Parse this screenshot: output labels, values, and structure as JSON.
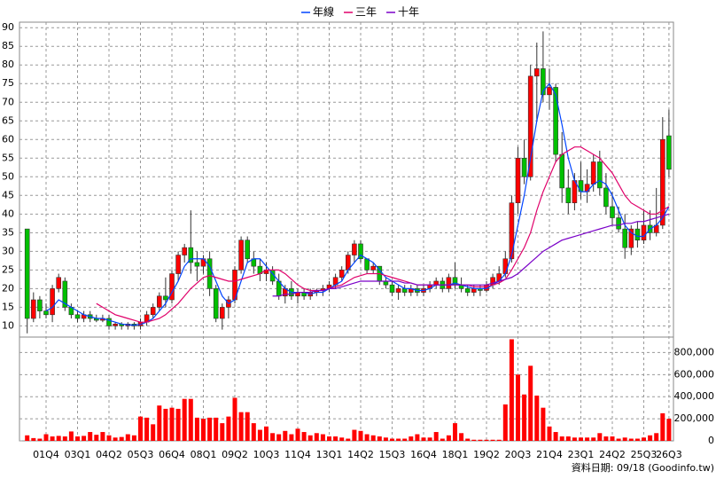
{
  "chart_data": {
    "type": "candlestick",
    "grid": true,
    "categories": [
      null,
      null,
      null,
      "01Q4",
      null,
      null,
      null,
      null,
      "03Q1",
      null,
      null,
      null,
      null,
      "04Q2",
      null,
      null,
      null,
      null,
      "05Q3",
      null,
      null,
      null,
      null,
      "06Q4",
      null,
      null,
      null,
      null,
      "08Q1",
      null,
      null,
      null,
      null,
      "09Q2",
      null,
      null,
      null,
      null,
      "10Q3",
      null,
      null,
      null,
      null,
      "11Q4",
      null,
      null,
      null,
      null,
      "13Q1",
      null,
      null,
      null,
      null,
      "14Q2",
      null,
      null,
      null,
      null,
      "15Q3",
      null,
      null,
      null,
      null,
      "16Q4",
      null,
      null,
      null,
      null,
      "18Q1",
      null,
      null,
      null,
      null,
      "19Q2",
      null,
      null,
      null,
      null,
      "20Q3",
      null,
      null,
      null,
      null,
      "21Q4",
      null,
      null,
      null,
      null,
      "23Q1",
      null,
      null,
      null,
      null,
      "24Q2",
      null,
      null,
      null,
      null,
      "25Q3",
      null,
      null,
      null,
      "26Q3"
    ],
    "ylim": [
      7,
      91
    ],
    "yticks": [
      10,
      15,
      20,
      25,
      30,
      35,
      40,
      45,
      50,
      55,
      60,
      65,
      70,
      75,
      80,
      85,
      90
    ],
    "up_color": "#ff0000",
    "down_color": "#00c000",
    "ohlc": [
      [
        36,
        36,
        8,
        12
      ],
      [
        12,
        19,
        11,
        17
      ],
      [
        17,
        18,
        12,
        14
      ],
      [
        14,
        16,
        12,
        13
      ],
      [
        13,
        21,
        11,
        20
      ],
      [
        20,
        24,
        19,
        23
      ],
      [
        22,
        23,
        14,
        15
      ],
      [
        15,
        16,
        12,
        13
      ],
      [
        13,
        14,
        11,
        12
      ],
      [
        12,
        14,
        11,
        13
      ],
      [
        13,
        14,
        11,
        12
      ],
      [
        12,
        13,
        11,
        11.5
      ],
      [
        11.5,
        13,
        11,
        12
      ],
      [
        12,
        13,
        9,
        10
      ],
      [
        10,
        11,
        9,
        10.5
      ],
      [
        10.5,
        11,
        9,
        10
      ],
      [
        10,
        11,
        9,
        10.5
      ],
      [
        10.5,
        11,
        9,
        10
      ],
      [
        10,
        12,
        9,
        11
      ],
      [
        11,
        14,
        10,
        13
      ],
      [
        13,
        16,
        12,
        15
      ],
      [
        15,
        19,
        14,
        18
      ],
      [
        18,
        23,
        15,
        17
      ],
      [
        17,
        25,
        16,
        24
      ],
      [
        24,
        30,
        22,
        29
      ],
      [
        29,
        32,
        27,
        31
      ],
      [
        31,
        41,
        24,
        27
      ],
      [
        27,
        30,
        22,
        26
      ],
      [
        26,
        29,
        24,
        28
      ],
      [
        28,
        30,
        18,
        20
      ],
      [
        20,
        21,
        11,
        12
      ],
      [
        12,
        16,
        9,
        15
      ],
      [
        15,
        18,
        12,
        17
      ],
      [
        17,
        26,
        16,
        25
      ],
      [
        25,
        34,
        24,
        33
      ],
      [
        33,
        34,
        27,
        28
      ],
      [
        28,
        30,
        24,
        26
      ],
      [
        26,
        28,
        22,
        24
      ],
      [
        24,
        27,
        22,
        25
      ],
      [
        25,
        26,
        21,
        22
      ],
      [
        22,
        24,
        17,
        18
      ],
      [
        18,
        21,
        16,
        20
      ],
      [
        20,
        22,
        17,
        18
      ],
      [
        18,
        20,
        16,
        19
      ],
      [
        19,
        20,
        17,
        18
      ],
      [
        18,
        20,
        17,
        19
      ],
      [
        19,
        20,
        18,
        19.5
      ],
      [
        19.5,
        21,
        18,
        20
      ],
      [
        20,
        22,
        19,
        21
      ],
      [
        21,
        24,
        20,
        23
      ],
      [
        23,
        26,
        22,
        25
      ],
      [
        25,
        30,
        24,
        29
      ],
      [
        29,
        33,
        27,
        32
      ],
      [
        32,
        33,
        27,
        28
      ],
      [
        28,
        28,
        24,
        25
      ],
      [
        25,
        27,
        24,
        26
      ],
      [
        26,
        26,
        21,
        22
      ],
      [
        22,
        23,
        20,
        21
      ],
      [
        21,
        22,
        18,
        19
      ],
      [
        19,
        21,
        17,
        20
      ],
      [
        20,
        21,
        18,
        19
      ],
      [
        19,
        21,
        18,
        20
      ],
      [
        20,
        21,
        18,
        19
      ],
      [
        19,
        21,
        18,
        20
      ],
      [
        20,
        22,
        19,
        21
      ],
      [
        21,
        23,
        20,
        22
      ],
      [
        22,
        23,
        19,
        20
      ],
      [
        20,
        24,
        19,
        23
      ],
      [
        23,
        27,
        20,
        21
      ],
      [
        21,
        23,
        19,
        20
      ],
      [
        20,
        21,
        18,
        19
      ],
      [
        19,
        21,
        18,
        20
      ],
      [
        20,
        21,
        18,
        19.5
      ],
      [
        19.5,
        22,
        19,
        21
      ],
      [
        21,
        24,
        20,
        23
      ],
      [
        22,
        26,
        21,
        24
      ],
      [
        24,
        30,
        23,
        28
      ],
      [
        28,
        45,
        27,
        43
      ],
      [
        43,
        58,
        40,
        55
      ],
      [
        55,
        60,
        48,
        50
      ],
      [
        50,
        80,
        49,
        77
      ],
      [
        77,
        86,
        65,
        79
      ],
      [
        79,
        89,
        70,
        72
      ],
      [
        72,
        79,
        68,
        74
      ],
      [
        74,
        75,
        54,
        56
      ],
      [
        56,
        62,
        43,
        47
      ],
      [
        47,
        52,
        40,
        43
      ],
      [
        43,
        51,
        41,
        49
      ],
      [
        49,
        54,
        44,
        46
      ],
      [
        46,
        52,
        43,
        48
      ],
      [
        48,
        56,
        46,
        54
      ],
      [
        54,
        57,
        45,
        47
      ],
      [
        47,
        51,
        40,
        42
      ],
      [
        42,
        46,
        37,
        39
      ],
      [
        39,
        42,
        35,
        36
      ],
      [
        36,
        40,
        28,
        31
      ],
      [
        31,
        37,
        29,
        36
      ],
      [
        36,
        38,
        31,
        33
      ],
      [
        33,
        41,
        32,
        37
      ],
      [
        37,
        41,
        33,
        35
      ],
      [
        35,
        47,
        34,
        37
      ],
      [
        37,
        66,
        36,
        60
      ],
      [
        61,
        68,
        50,
        52
      ]
    ],
    "series": [
      {
        "name": "年線",
        "color": "#0044ff",
        "values": [
          null,
          null,
          null,
          14,
          15,
          17,
          16,
          15,
          14,
          13,
          12.5,
          12,
          12,
          11.5,
          11,
          10.5,
          10.3,
          10.2,
          10.4,
          11,
          12,
          14,
          16,
          19,
          22,
          26,
          28,
          28,
          28,
          26,
          22,
          18,
          16,
          17,
          22,
          27,
          28,
          28,
          26,
          24,
          22,
          20,
          19,
          19,
          19,
          18.5,
          19,
          19,
          20,
          21,
          22,
          25,
          27,
          29,
          28,
          27,
          25,
          23,
          22,
          21,
          20,
          20,
          19.5,
          19.5,
          20,
          21,
          21,
          21,
          21.5,
          21,
          20.5,
          20,
          20,
          20,
          21,
          22,
          24,
          29,
          37,
          45,
          55,
          65,
          73,
          75,
          72,
          64,
          55,
          49,
          46,
          46,
          48,
          49,
          48,
          45,
          41,
          37,
          35,
          34,
          34,
          36,
          37,
          39,
          42
        ]
      },
      {
        "name": "三年",
        "color": "#e0006a",
        "values": [
          null,
          null,
          null,
          null,
          null,
          null,
          null,
          null,
          null,
          null,
          null,
          16,
          15,
          14,
          13,
          12.5,
          12,
          11.5,
          11,
          11,
          11.5,
          12,
          13,
          14.5,
          16,
          18,
          20,
          21.5,
          23,
          23.5,
          23,
          22.5,
          22,
          22,
          22.5,
          23,
          23.5,
          24,
          25,
          25,
          25,
          24,
          22.5,
          21,
          20,
          19.5,
          19.5,
          19.5,
          20,
          20.5,
          21,
          22,
          23,
          23.5,
          24,
          24,
          24,
          23.5,
          23,
          22.5,
          22,
          21.5,
          21,
          21,
          21,
          21,
          21,
          21,
          21,
          21,
          21,
          20.5,
          20.5,
          20.5,
          21,
          21.5,
          22.5,
          25,
          28,
          31,
          35,
          41,
          46,
          50,
          54,
          56,
          57,
          58,
          58,
          57,
          56,
          55,
          53,
          51,
          48,
          45,
          43,
          42,
          41,
          40,
          40,
          41,
          42
        ]
      },
      {
        "name": "十年",
        "color": "#7a00c8",
        "values": [
          null,
          null,
          null,
          null,
          null,
          null,
          null,
          null,
          null,
          null,
          null,
          null,
          null,
          null,
          null,
          null,
          null,
          null,
          null,
          null,
          null,
          null,
          null,
          null,
          null,
          null,
          null,
          null,
          null,
          null,
          null,
          null,
          null,
          null,
          null,
          null,
          null,
          null,
          null,
          18,
          18,
          18.5,
          18.5,
          19,
          19,
          19,
          19.5,
          19.5,
          20,
          20,
          20.5,
          21,
          21.5,
          22,
          22,
          22,
          22,
          22,
          22,
          22,
          21.5,
          21.5,
          21,
          21,
          21,
          21,
          21,
          21,
          21,
          21,
          21,
          21,
          21,
          21,
          21.5,
          22,
          22.5,
          23,
          24,
          25.5,
          27,
          28.5,
          30,
          31,
          32,
          33,
          33.5,
          34,
          34.5,
          35,
          35.5,
          36,
          36.5,
          37,
          37,
          37.5,
          37.5,
          38,
          38,
          38.5,
          39,
          39.5,
          40
        ]
      }
    ],
    "volume": {
      "color": "#ff0000",
      "ylim": [
        0,
        940000
      ],
      "yticks": [
        0,
        {
          "value": 200000,
          "label": "200,000"
        },
        {
          "value": 400000,
          "label": "400,000"
        },
        {
          "value": 600000,
          "label": "600,000"
        },
        {
          "value": 800000,
          "label": "800,000"
        }
      ],
      "values": [
        50000,
        25000,
        20000,
        60000,
        40000,
        45000,
        40000,
        85000,
        40000,
        45000,
        80000,
        55000,
        80000,
        50000,
        30000,
        35000,
        60000,
        50000,
        220000,
        210000,
        150000,
        320000,
        290000,
        300000,
        290000,
        380000,
        380000,
        210000,
        200000,
        210000,
        210000,
        160000,
        220000,
        390000,
        260000,
        260000,
        160000,
        100000,
        130000,
        70000,
        60000,
        90000,
        60000,
        110000,
        80000,
        50000,
        70000,
        60000,
        40000,
        40000,
        30000,
        20000,
        100000,
        90000,
        60000,
        50000,
        40000,
        30000,
        20000,
        20000,
        20000,
        40000,
        60000,
        30000,
        30000,
        80000,
        20000,
        50000,
        160000,
        70000,
        20000,
        10000,
        10000,
        10000,
        10000,
        10000,
        330000,
        920000,
        600000,
        420000,
        680000,
        410000,
        300000,
        130000,
        80000,
        40000,
        40000,
        30000,
        30000,
        30000,
        30000,
        70000,
        40000,
        40000,
        20000,
        30000,
        20000,
        20000,
        30000,
        50000,
        70000,
        250000,
        200000
      ]
    },
    "footnote": "資料日期: 09/18 (Goodinfo.tw)"
  }
}
